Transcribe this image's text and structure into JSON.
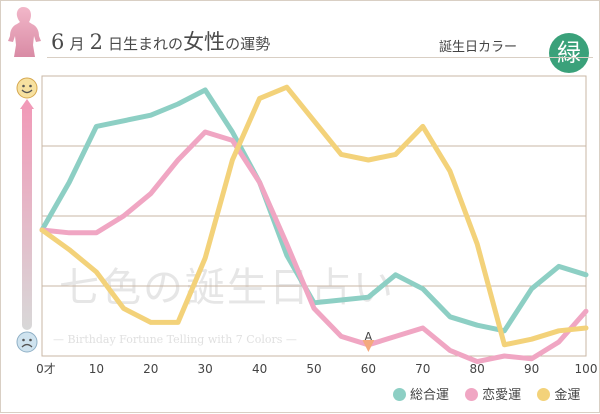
{
  "header": {
    "title_month": "6",
    "title_month_unit": "月",
    "title_day": "2",
    "title_day_unit": "日生まれの",
    "title_women": "女性",
    "title_suffix": "の運勢",
    "birthday_color_label": "誕生日カラー",
    "birthday_color_char": "緑",
    "birthday_color": "#3aa17a"
  },
  "watermark": {
    "main": "七色の誕生日占い",
    "sub": "— Birthday Fortune Telling with 7 Colors —"
  },
  "annotation": {
    "label": "A"
  },
  "chart_data": {
    "type": "line",
    "x_tick_labels": [
      "0才",
      "10",
      "20",
      "30",
      "40",
      "50",
      "60",
      "70",
      "80",
      "90",
      "100"
    ],
    "x_ticks": [
      0,
      10,
      20,
      30,
      40,
      50,
      60,
      70,
      80,
      90,
      100
    ],
    "xlim": [
      0,
      100
    ],
    "ylim": [
      0,
      100
    ],
    "grid": "horizontal",
    "y_top_icon": "smiley-happy-icon",
    "y_bottom_icon": "smiley-sad-icon",
    "legend_position": "bottom-right",
    "series": [
      {
        "name": "総合運",
        "color": "#8dcfc4",
        "x": [
          0,
          5,
          10,
          20,
          25,
          30,
          35,
          40,
          45,
          50,
          55,
          60,
          65,
          70,
          75,
          80,
          85,
          90,
          95,
          100
        ],
        "y": [
          45,
          62,
          82,
          86,
          90,
          95,
          80,
          62,
          36,
          19,
          20,
          21,
          29,
          24,
          14,
          11,
          9,
          24,
          32,
          29
        ]
      },
      {
        "name": "恋愛運",
        "color": "#f0a6c3",
        "x": [
          0,
          5,
          10,
          15,
          20,
          25,
          30,
          35,
          40,
          45,
          50,
          55,
          60,
          65,
          70,
          75,
          80,
          85,
          90,
          95,
          100
        ],
        "y": [
          45,
          44,
          44,
          50,
          58,
          70,
          80,
          77,
          62,
          40,
          17,
          7,
          4,
          7,
          10,
          2,
          -2,
          0,
          -1,
          5,
          16
        ]
      },
      {
        "name": "金運",
        "color": "#f3d27a",
        "x": [
          0,
          5,
          10,
          15,
          20,
          25,
          30,
          35,
          40,
          45,
          50,
          55,
          60,
          65,
          70,
          75,
          80,
          85,
          90,
          95,
          100
        ],
        "y": [
          45,
          38,
          30,
          17,
          12,
          12,
          35,
          70,
          92,
          96,
          84,
          72,
          70,
          72,
          82,
          66,
          40,
          4,
          6,
          9,
          10
        ]
      }
    ],
    "annotations": [
      {
        "label": "A",
        "x": 60
      }
    ]
  }
}
